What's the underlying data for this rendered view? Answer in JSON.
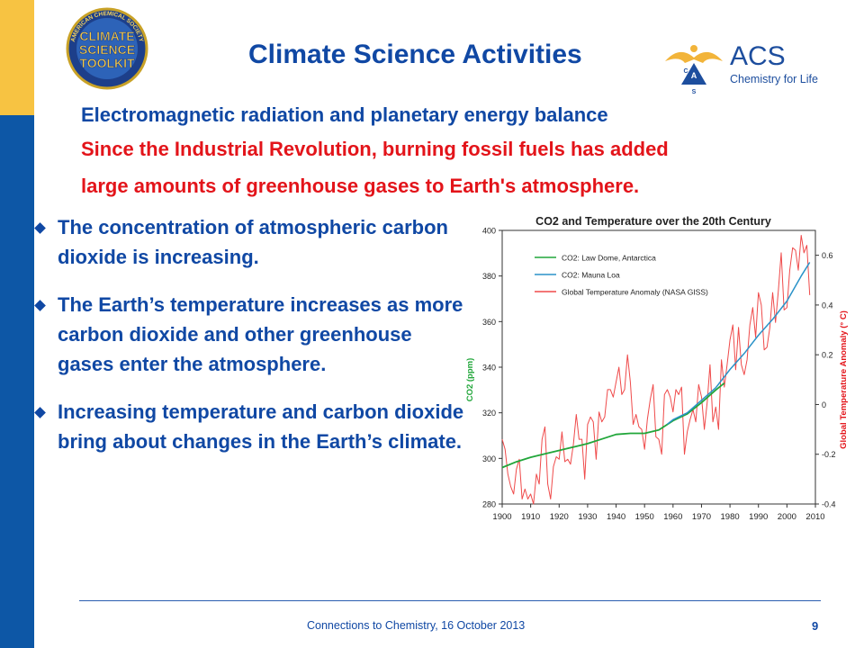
{
  "slide": {
    "title": "Climate Science Activities",
    "subtitle": "Electromagnetic radiation and planetary energy balance",
    "red_lines": [
      "Since the Industrial Revolution, burning fossil fuels has added",
      "large amounts of greenhouse gases to Earth's atmosphere."
    ],
    "bullets": [
      "The concentration of atmospheric carbon dioxide is increasing.",
      "The Earth’s temperature increases as more carbon dioxide and other greenhouse gases enter the atmosphere.",
      "Increasing temperature and carbon dioxide bring about changes in the Earth’s climate."
    ],
    "footer": "Connections to Chemistry, 16 October 2013",
    "page_number": "9"
  },
  "logos": {
    "toolkit_lines": [
      "CLIMATE",
      "SCIENCE",
      "TOOLKIT"
    ],
    "toolkit_ring_text": "AMERICAN CHEMICAL SOCIETY",
    "acs_name": "ACS",
    "acs_tagline": "Chemistry for Life",
    "acs_letters": [
      "A",
      "C",
      "S"
    ]
  },
  "colors": {
    "sidebar_blue": "#0d57a6",
    "sidebar_gold": "#f7c342",
    "title_blue": "#1048a4",
    "accent_red": "#e3141a",
    "co2_law_dome": "#21a63a",
    "co2_mauna_loa": "#2a92c8",
    "temperature": "#ef4a4a"
  },
  "chart_data": {
    "type": "line",
    "title": "CO2 and Temperature over the 20th Century",
    "xlim": [
      1900,
      2010
    ],
    "xticks": [
      1900,
      1910,
      1920,
      1930,
      1940,
      1950,
      1960,
      1970,
      1980,
      1990,
      2000,
      2010
    ],
    "y_left": {
      "label": "CO2 (ppm)",
      "lim": [
        280,
        400
      ],
      "ticks": [
        280,
        300,
        320,
        340,
        360,
        380,
        400
      ]
    },
    "y_right": {
      "label": "Global Temperature Anomaly (° C)",
      "lim": [
        -0.4,
        0.7
      ],
      "ticks": [
        -0.4,
        -0.2,
        0,
        0.2,
        0.4,
        0.6
      ]
    },
    "legend_position": "top-left",
    "series": [
      {
        "name": "CO2: Law Dome, Antarctica",
        "axis": "left",
        "x": [
          1900,
          1905,
          1910,
          1915,
          1920,
          1925,
          1930,
          1935,
          1940,
          1945,
          1950,
          1955,
          1960,
          1965,
          1970,
          1975,
          1978
        ],
        "y": [
          296,
          298.5,
          300.5,
          302,
          303.5,
          305,
          306.5,
          308.5,
          310.5,
          311,
          311,
          312.5,
          316.5,
          319.5,
          324.5,
          330,
          333
        ]
      },
      {
        "name": "CO2: Mauna Loa",
        "axis": "left",
        "x": [
          1958,
          1960,
          1965,
          1970,
          1975,
          1980,
          1985,
          1990,
          1995,
          2000,
          2005,
          2008
        ],
        "y": [
          315,
          317,
          320,
          325.5,
          331,
          339,
          346,
          354,
          361,
          369,
          380,
          386
        ]
      },
      {
        "name": "Global Temperature Anomaly (NASA GISS)",
        "axis": "right",
        "x": [
          1900,
          1901,
          1902,
          1903,
          1904,
          1905,
          1906,
          1907,
          1908,
          1909,
          1910,
          1911,
          1912,
          1913,
          1914,
          1915,
          1916,
          1917,
          1918,
          1919,
          1920,
          1921,
          1922,
          1923,
          1924,
          1925,
          1926,
          1927,
          1928,
          1929,
          1930,
          1931,
          1932,
          1933,
          1934,
          1935,
          1936,
          1937,
          1938,
          1939,
          1940,
          1941,
          1942,
          1943,
          1944,
          1945,
          1946,
          1947,
          1948,
          1949,
          1950,
          1951,
          1952,
          1953,
          1954,
          1955,
          1956,
          1957,
          1958,
          1959,
          1960,
          1961,
          1962,
          1963,
          1964,
          1965,
          1966,
          1967,
          1968,
          1969,
          1970,
          1971,
          1972,
          1973,
          1974,
          1975,
          1976,
          1977,
          1978,
          1979,
          1980,
          1981,
          1982,
          1983,
          1984,
          1985,
          1986,
          1987,
          1988,
          1989,
          1990,
          1991,
          1992,
          1993,
          1994,
          1995,
          1996,
          1997,
          1998,
          1999,
          2000,
          2001,
          2002,
          2003,
          2004,
          2005,
          2006,
          2007,
          2008
        ],
        "y": [
          -0.14,
          -0.18,
          -0.28,
          -0.33,
          -0.36,
          -0.26,
          -0.22,
          -0.38,
          -0.34,
          -0.38,
          -0.36,
          -0.4,
          -0.28,
          -0.32,
          -0.14,
          -0.09,
          -0.32,
          -0.38,
          -0.25,
          -0.21,
          -0.22,
          -0.11,
          -0.23,
          -0.22,
          -0.24,
          -0.16,
          -0.04,
          -0.14,
          -0.14,
          -0.3,
          -0.08,
          -0.05,
          -0.07,
          -0.22,
          -0.03,
          -0.07,
          -0.05,
          0.06,
          0.06,
          0.03,
          0.09,
          0.15,
          0.04,
          0.06,
          0.2,
          0.09,
          -0.08,
          -0.04,
          -0.09,
          -0.1,
          -0.18,
          -0.06,
          0.02,
          0.08,
          -0.13,
          -0.14,
          -0.2,
          0.04,
          0.06,
          0.03,
          -0.03,
          0.06,
          0.04,
          0.07,
          -0.2,
          -0.11,
          -0.06,
          -0.02,
          -0.07,
          0.08,
          0.03,
          -0.1,
          0.01,
          0.16,
          -0.07,
          -0.01,
          -0.1,
          0.18,
          0.07,
          0.16,
          0.26,
          0.32,
          0.14,
          0.31,
          0.16,
          0.12,
          0.18,
          0.32,
          0.39,
          0.27,
          0.45,
          0.4,
          0.22,
          0.23,
          0.31,
          0.45,
          0.33,
          0.46,
          0.61,
          0.38,
          0.39,
          0.54,
          0.63,
          0.62,
          0.54,
          0.68,
          0.61,
          0.64,
          0.44
        ]
      }
    ]
  }
}
